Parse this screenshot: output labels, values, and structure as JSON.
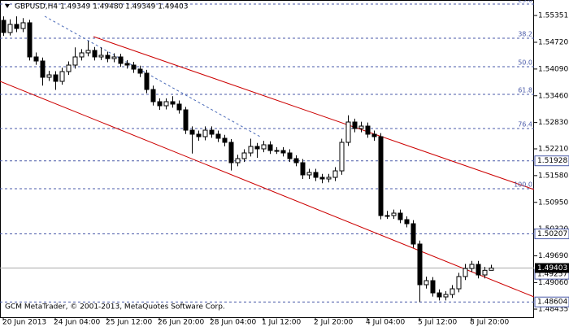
{
  "chart_data": {
    "type": "candlestick",
    "title": "GBPUSD,H4  1.49349 1.49480 1.49349 1.49403",
    "footer": "GCM MetaTrader, © 2001-2013, MetaQuotes Software Corp.",
    "x": [
      "20 Jun 2013",
      null,
      null,
      null,
      null,
      null,
      null,
      null,
      "24 Jun 04:00",
      null,
      null,
      null,
      null,
      null,
      null,
      null,
      "25 Jun 12:00",
      null,
      null,
      null,
      null,
      null,
      null,
      null,
      "26 Jun 20:00",
      null,
      null,
      null,
      null,
      null,
      null,
      null,
      "28 Jun 04:00",
      null,
      null,
      null,
      null,
      null,
      null,
      null,
      "1 Jul 12:00",
      null,
      null,
      null,
      null,
      null,
      null,
      null,
      "2 Jul 20:00",
      null,
      null,
      null,
      null,
      null,
      null,
      null,
      "4 Jul 04:00",
      null,
      null,
      null,
      null,
      null,
      null,
      null,
      "5 Jul 12:00",
      null,
      null,
      null,
      null,
      null,
      null,
      null,
      "8 Jul 20:00",
      null,
      null,
      null
    ],
    "open": [
      1.55237,
      1.5495,
      1.55141,
      1.55045,
      1.5518,
      1.54375,
      1.54279,
      1.53896,
      1.53953,
      1.538,
      1.5403,
      1.54183,
      1.54375,
      1.54471,
      1.54528,
      1.54375,
      1.54413,
      1.54336,
      1.54375,
      1.54222,
      1.54183,
      1.54087,
      1.53992,
      1.53608,
      1.53321,
      1.53225,
      1.53321,
      1.53264,
      1.53129,
      1.5265,
      1.52555,
      1.52497,
      1.5265,
      1.52555,
      1.52459,
      1.52363,
      1.51884,
      1.5198,
      1.52114,
      1.52267,
      1.5221,
      1.52306,
      1.52171,
      1.52171,
      1.52114,
      1.5198,
      1.51884,
      1.51597,
      1.51654,
      1.51539,
      1.51501,
      1.51539,
      1.51692,
      1.52363,
      1.52842,
      1.52689,
      1.52746,
      1.52555,
      1.52497,
      1.50639,
      1.50639,
      1.50696,
      1.50543,
      1.50447,
      1.49968,
      1.4901,
      1.49106,
      1.48818,
      1.48723,
      1.4878,
      1.48914,
      1.49202,
      1.49393,
      1.49489,
      1.4924,
      1.49349
    ],
    "high": [
      1.5533,
      1.5526,
      1.5533,
      1.5529,
      1.5525,
      1.5448,
      1.5436,
      1.5405,
      1.5404,
      1.5412,
      1.5427,
      1.546,
      1.5456,
      1.5475,
      1.5461,
      1.546,
      1.545,
      1.5446,
      1.5445,
      1.543,
      1.5426,
      1.5417,
      1.5407,
      1.537,
      1.534,
      1.534,
      1.5345,
      1.5335,
      1.532,
      1.5274,
      1.5264,
      1.5274,
      1.5274,
      1.5264,
      1.5254,
      1.5244,
      1.5207,
      1.522,
      1.5245,
      1.5235,
      1.524,
      1.5239,
      1.5225,
      1.5225,
      1.522,
      1.5206,
      1.5197,
      1.5174,
      1.5174,
      1.5162,
      1.5162,
      1.5178,
      1.5245,
      1.53,
      1.5292,
      1.5285,
      1.5283,
      1.5264,
      1.5258,
      1.5075,
      1.5078,
      1.5078,
      1.5062,
      1.5053,
      1.5005,
      1.492,
      1.4919,
      1.489,
      1.4886,
      1.49,
      1.4929,
      1.495,
      1.4957,
      1.4957,
      1.4943,
      1.4948
    ],
    "low": [
      1.5487,
      1.5488,
      1.5496,
      1.5496,
      1.5429,
      1.5419,
      1.537,
      1.5381,
      1.536,
      1.5372,
      1.5395,
      1.541,
      1.5429,
      1.5439,
      1.5429,
      1.543,
      1.5425,
      1.5425,
      1.5414,
      1.541,
      1.54,
      1.539,
      1.5352,
      1.5323,
      1.5313,
      1.5314,
      1.5318,
      1.5304,
      1.5256,
      1.521,
      1.524,
      1.5241,
      1.5247,
      1.5237,
      1.5227,
      1.517,
      1.518,
      1.519,
      1.5203,
      1.52,
      1.5213,
      1.5209,
      1.5209,
      1.5203,
      1.519,
      1.518,
      1.515,
      1.515,
      1.5145,
      1.514,
      1.5142,
      1.5145,
      1.516,
      1.5228,
      1.526,
      1.526,
      1.5247,
      1.524,
      1.5055,
      1.5056,
      1.5056,
      1.5046,
      1.5036,
      1.4988,
      1.486,
      1.4892,
      1.4873,
      1.4864,
      1.4864,
      1.487,
      1.4883,
      1.4912,
      1.4931,
      1.4916,
      1.4916,
      1.49349
    ],
    "close": [
      1.5495,
      1.55141,
      1.55045,
      1.5518,
      1.54375,
      1.54279,
      1.53896,
      1.53953,
      1.538,
      1.5403,
      1.54183,
      1.54375,
      1.54471,
      1.54528,
      1.54375,
      1.54413,
      1.54336,
      1.54375,
      1.54222,
      1.54183,
      1.54087,
      1.53992,
      1.53608,
      1.53321,
      1.53225,
      1.53321,
      1.53264,
      1.53129,
      1.5265,
      1.52555,
      1.52497,
      1.5265,
      1.52555,
      1.52459,
      1.52363,
      1.51884,
      1.5198,
      1.52114,
      1.52267,
      1.5221,
      1.52306,
      1.52171,
      1.52171,
      1.52114,
      1.5198,
      1.51884,
      1.51597,
      1.51654,
      1.51539,
      1.51501,
      1.51539,
      1.51692,
      1.52363,
      1.52842,
      1.52689,
      1.52746,
      1.52555,
      1.52497,
      1.50639,
      1.50639,
      1.50696,
      1.50543,
      1.50447,
      1.49968,
      1.4901,
      1.49106,
      1.48818,
      1.48723,
      1.4878,
      1.48914,
      1.49202,
      1.49393,
      1.49489,
      1.4924,
      1.49349,
      1.49403
    ],
    "ylim": [
      1.48244,
      1.55716
    ],
    "yticks": [
      1.55351,
      {
        "value": 1.5472,
        "label": "1.54720"
      },
      {
        "value": 1.5409,
        "label": "1.54090"
      },
      {
        "value": 1.5346,
        "label": "1.53460"
      },
      {
        "value": 1.5283,
        "label": "1.52830"
      },
      {
        "value": 1.5221,
        "label": "1.52210"
      },
      {
        "value": 1.5158,
        "label": "1.51580"
      },
      {
        "value": 1.5095,
        "label": "1.50950"
      },
      {
        "value": 1.5032,
        "label": "1.50320"
      },
      {
        "value": 1.4969,
        "label": "1.49690"
      },
      {
        "value": 1.4906,
        "label": "1.49060"
      },
      1.48435
    ],
    "levels": [
      1.51928,
      1.50207,
      1.49257,
      1.48604
    ],
    "bid": 1.49403,
    "fibo": {
      "levels": [
        23.6,
        38.2,
        {
          "value": 50,
          "label": "50.0"
        },
        61.8,
        76.4,
        {
          "value": 100,
          "label": "100.0"
        }
      ],
      "prices": [
        1.5562,
        1.54816,
        1.54145,
        1.53494,
        1.52689,
        1.51271
      ]
    },
    "up_color": "#ffffff",
    "down_color": "#000000",
    "level_color": "#4a5aa8"
  }
}
